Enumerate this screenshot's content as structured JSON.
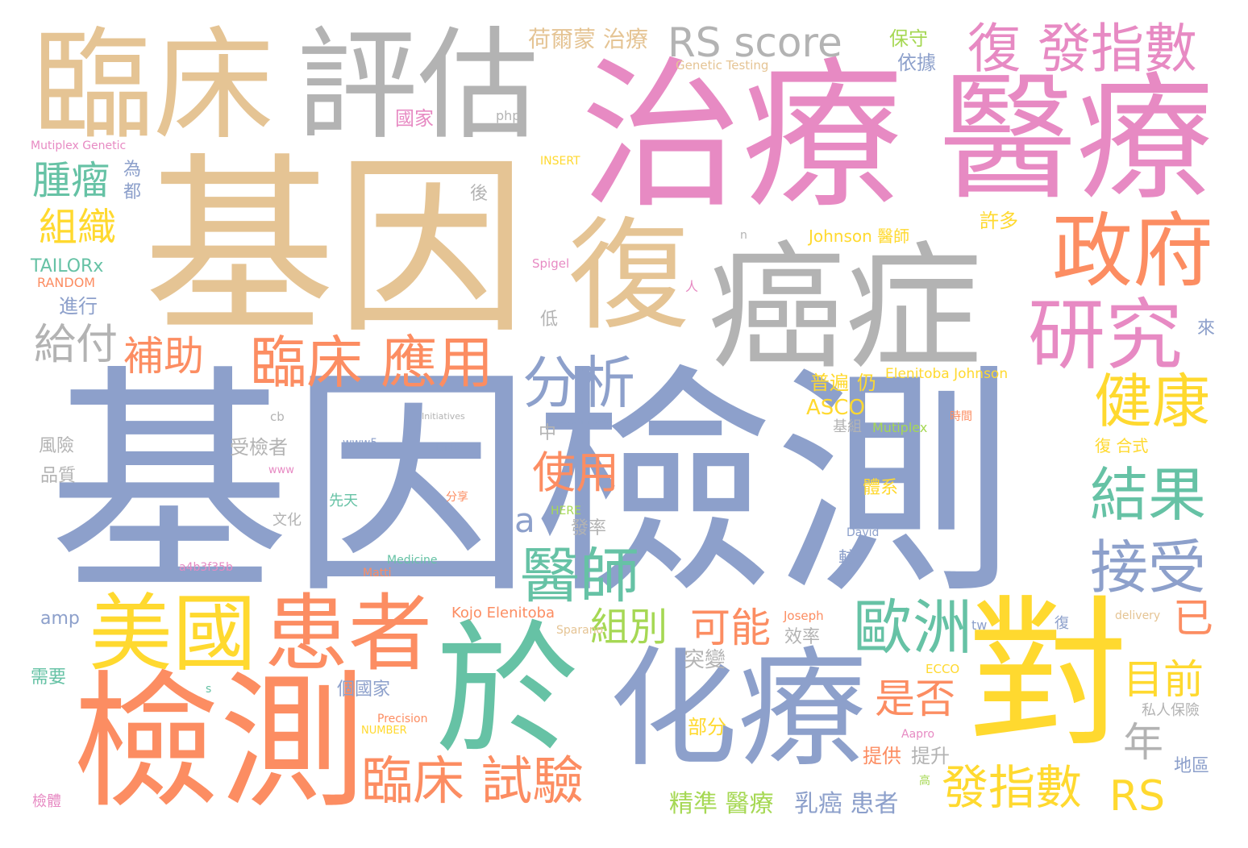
{
  "palette": {
    "blue": "#8da0cb",
    "orange": "#fc8d62",
    "green": "#66c2a5",
    "pink": "#e78ac3",
    "lime": "#a6d854",
    "yellow": "#ffd92f",
    "tan": "#e5c494",
    "gray": "#b3b3b3"
  },
  "words": [
    {
      "text": "基因檢測",
      "color": "blue"
    },
    {
      "text": "基因",
      "color": "tan"
    },
    {
      "text": "治療",
      "color": "pink"
    },
    {
      "text": "醫療",
      "color": "pink"
    },
    {
      "text": "臨床",
      "color": "tan"
    },
    {
      "text": "評估",
      "color": "gray"
    },
    {
      "text": "癌症",
      "color": "gray"
    },
    {
      "text": "化療",
      "color": "blue"
    },
    {
      "text": "於",
      "color": "green"
    },
    {
      "text": "對",
      "color": "yellow"
    },
    {
      "text": "檢測",
      "color": "orange"
    },
    {
      "text": "復",
      "color": "tan"
    },
    {
      "text": "政府",
      "color": "orange"
    },
    {
      "text": "研究",
      "color": "pink"
    },
    {
      "text": "RS score",
      "color": "gray"
    },
    {
      "text": "復 發指數",
      "color": "pink"
    },
    {
      "text": "美國",
      "color": "yellow"
    },
    {
      "text": "患者",
      "color": "orange"
    },
    {
      "text": "臨床 應用",
      "color": "orange"
    },
    {
      "text": "補助",
      "color": "orange"
    },
    {
      "text": "分析",
      "color": "blue"
    },
    {
      "text": "健康",
      "color": "yellow"
    },
    {
      "text": "結果",
      "color": "green"
    },
    {
      "text": "接受",
      "color": "blue"
    },
    {
      "text": "醫師",
      "color": "green"
    },
    {
      "text": "歐洲",
      "color": "green"
    },
    {
      "text": "使用",
      "color": "orange"
    },
    {
      "text": "給付",
      "color": "gray"
    },
    {
      "text": "腫瘤",
      "color": "green"
    },
    {
      "text": "組織",
      "color": "yellow"
    },
    {
      "text": "臨床 試驗",
      "color": "orange"
    },
    {
      "text": "發指數",
      "color": "yellow"
    },
    {
      "text": "RS",
      "color": "yellow"
    },
    {
      "text": "可能",
      "color": "orange"
    },
    {
      "text": "組別",
      "color": "lime"
    },
    {
      "text": "是否",
      "color": "orange"
    },
    {
      "text": "目前",
      "color": "yellow"
    },
    {
      "text": "已",
      "color": "orange"
    },
    {
      "text": "年",
      "color": "gray"
    },
    {
      "text": "荷爾蒙 治療",
      "color": "tan"
    },
    {
      "text": "保守",
      "color": "lime"
    },
    {
      "text": "依據",
      "color": "blue"
    },
    {
      "text": "Genetic Testing",
      "color": "tan"
    },
    {
      "text": "a",
      "color": "blue"
    },
    {
      "text": "精準 醫療",
      "color": "lime"
    },
    {
      "text": "乳癌 患者",
      "color": "blue"
    },
    {
      "text": "提供",
      "color": "orange"
    },
    {
      "text": "提升",
      "color": "gray"
    },
    {
      "text": "部分",
      "color": "yellow"
    },
    {
      "text": "突變",
      "color": "gray"
    },
    {
      "text": "ASCO",
      "color": "yellow"
    },
    {
      "text": "普遍",
      "color": "yellow"
    },
    {
      "text": "仍",
      "color": "yellow"
    },
    {
      "text": "許多",
      "color": "yellow"
    },
    {
      "text": "Johnson 醫師",
      "color": "yellow"
    },
    {
      "text": "Elenitoba Johnson",
      "color": "yellow"
    },
    {
      "text": "Mutiplex",
      "color": "lime"
    },
    {
      "text": "基組",
      "color": "gray"
    },
    {
      "text": "TAILORx",
      "color": "green"
    },
    {
      "text": "RANDOM",
      "color": "orange"
    },
    {
      "text": "進行",
      "color": "blue"
    },
    {
      "text": "為",
      "color": "blue"
    },
    {
      "text": "都",
      "color": "blue"
    },
    {
      "text": "國家",
      "color": "pink"
    },
    {
      "text": "php",
      "color": "gray"
    },
    {
      "text": "後",
      "color": "gray"
    },
    {
      "text": "INSERT",
      "color": "yellow"
    },
    {
      "text": "Mutiplex Genetic",
      "color": "pink"
    },
    {
      "text": "Spigel",
      "color": "pink"
    },
    {
      "text": "低",
      "color": "gray"
    },
    {
      "text": "中",
      "color": "gray"
    },
    {
      "text": "受檢者",
      "color": "gray"
    },
    {
      "text": "風險",
      "color": "gray"
    },
    {
      "text": "品質",
      "color": "gray"
    },
    {
      "text": "cb",
      "color": "gray"
    },
    {
      "text": "www5",
      "color": "blue"
    },
    {
      "text": "DNA",
      "color": "blue"
    },
    {
      "text": "www",
      "color": "pink"
    },
    {
      "text": "technews",
      "color": "blue"
    },
    {
      "text": "先天",
      "color": "green"
    },
    {
      "text": "分享",
      "color": "orange"
    },
    {
      "text": "HERE",
      "color": "lime"
    },
    {
      "text": "發率",
      "color": "gray"
    },
    {
      "text": "文化",
      "color": "gray"
    },
    {
      "text": "a4b3f35b",
      "color": "pink"
    },
    {
      "text": "Medicine",
      "color": "green"
    },
    {
      "text": "Matti",
      "color": "orange"
    },
    {
      "text": "David",
      "color": "blue"
    },
    {
      "text": "較",
      "color": "blue"
    },
    {
      "text": "體系",
      "color": "yellow"
    },
    {
      "text": "amp",
      "color": "blue"
    },
    {
      "text": "Kojo Elenitoba",
      "color": "orange"
    },
    {
      "text": "Joseph",
      "color": "orange"
    },
    {
      "text": "效率",
      "color": "gray"
    },
    {
      "text": "Sparano",
      "color": "tan"
    },
    {
      "text": "需要",
      "color": "green"
    },
    {
      "text": "個國家",
      "color": "blue"
    },
    {
      "text": "Precision",
      "color": "orange"
    },
    {
      "text": "NUMBER",
      "color": "yellow"
    },
    {
      "text": "檢體",
      "color": "pink"
    },
    {
      "text": "ECCO",
      "color": "yellow"
    },
    {
      "text": "Aapro",
      "color": "pink"
    },
    {
      "text": "私人保險",
      "color": "gray"
    },
    {
      "text": "地區",
      "color": "blue"
    },
    {
      "text": "delivery",
      "color": "tan"
    },
    {
      "text": "tw",
      "color": "blue"
    },
    {
      "text": "復 合式",
      "color": "yellow"
    },
    {
      "text": "時間",
      "color": "orange"
    },
    {
      "text": "來",
      "color": "blue"
    },
    {
      "text": "s",
      "color": "green"
    },
    {
      "text": "n",
      "color": "gray"
    },
    {
      "text": "Initiatives",
      "color": "gray"
    },
    {
      "text": "高",
      "color": "lime"
    },
    {
      "text": "復",
      "color": "blue"
    },
    {
      "text": "人",
      "color": "pink"
    }
  ]
}
